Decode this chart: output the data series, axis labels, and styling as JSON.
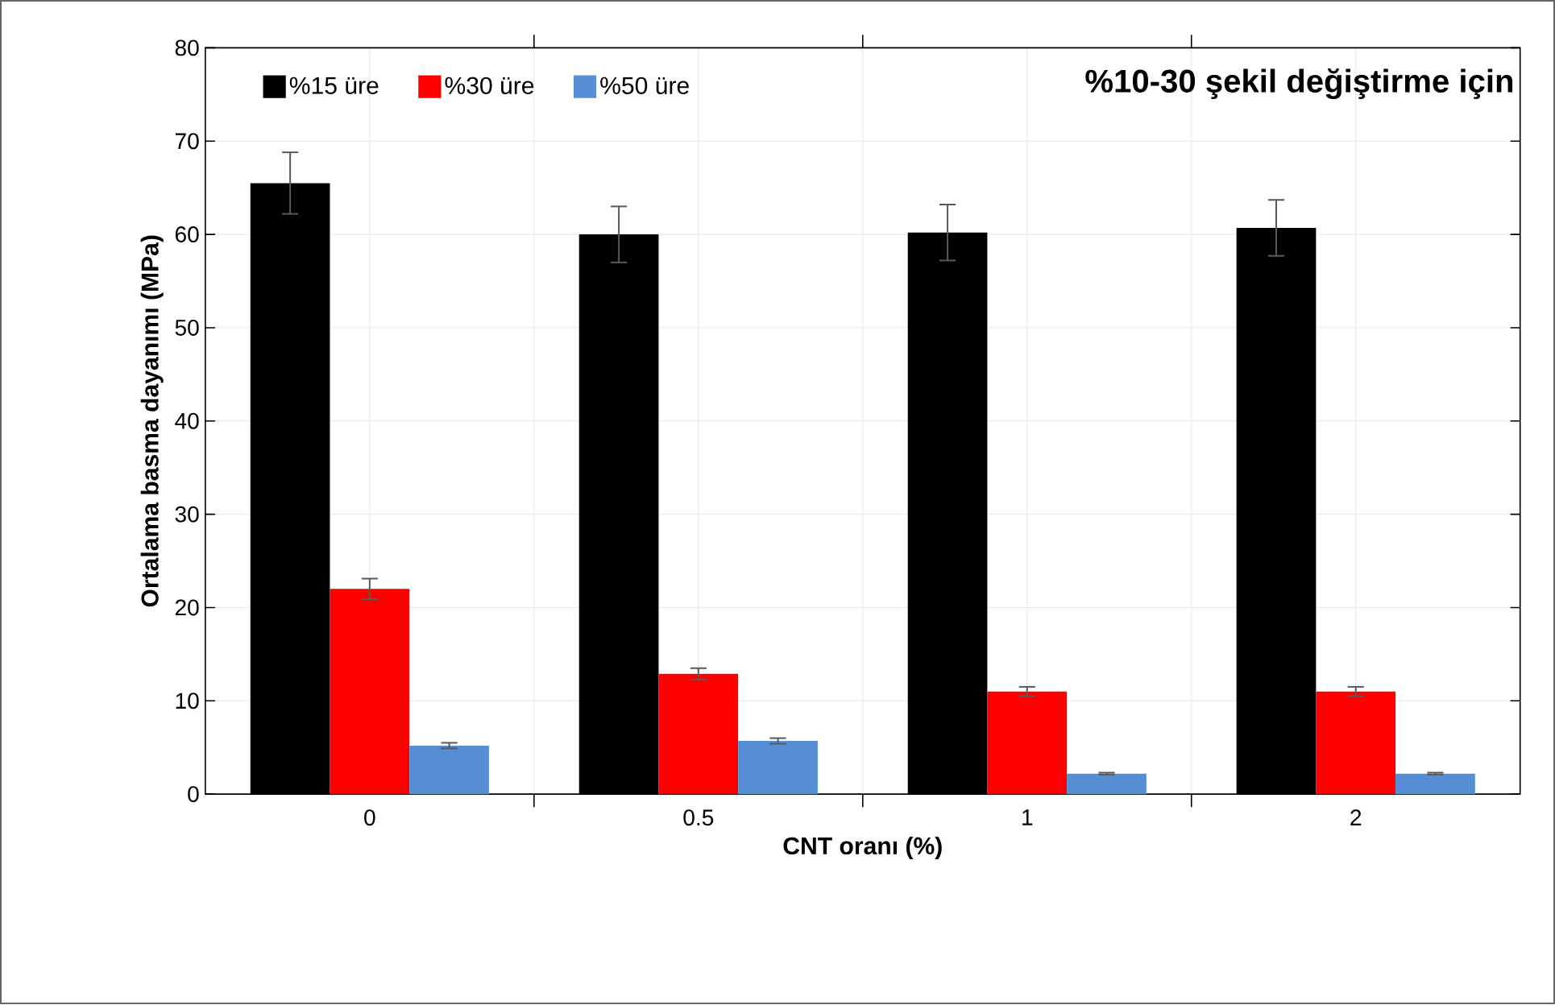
{
  "chart_data": {
    "type": "bar",
    "title": "%10-30 şekil değiştirme için",
    "xlabel": "CNT oranı (%)",
    "ylabel": "Ortalama basma dayanımı (MPa)",
    "categories": [
      "0",
      "0.5",
      "1",
      "2"
    ],
    "series": [
      {
        "name": "%15 üre",
        "color": "#000000",
        "values": [
          65.5,
          60,
          60.2,
          60.7
        ],
        "errors": [
          3.3,
          3,
          3,
          3
        ]
      },
      {
        "name": "%30 üre",
        "color": "#ff0000",
        "values": [
          22,
          12.9,
          11,
          11
        ],
        "errors": [
          1.1,
          0.6,
          0.5,
          0.5
        ]
      },
      {
        "name": "%50 üre",
        "color": "#558ed5",
        "values": [
          5.2,
          5.7,
          2.2,
          2.2
        ],
        "errors": [
          0.3,
          0.3,
          0.1,
          0.1
        ]
      }
    ],
    "ylim": [
      0,
      80
    ],
    "yticks": [
      0,
      10,
      20,
      30,
      40,
      50,
      60,
      70,
      80
    ],
    "grid": true,
    "legend": "top left"
  }
}
